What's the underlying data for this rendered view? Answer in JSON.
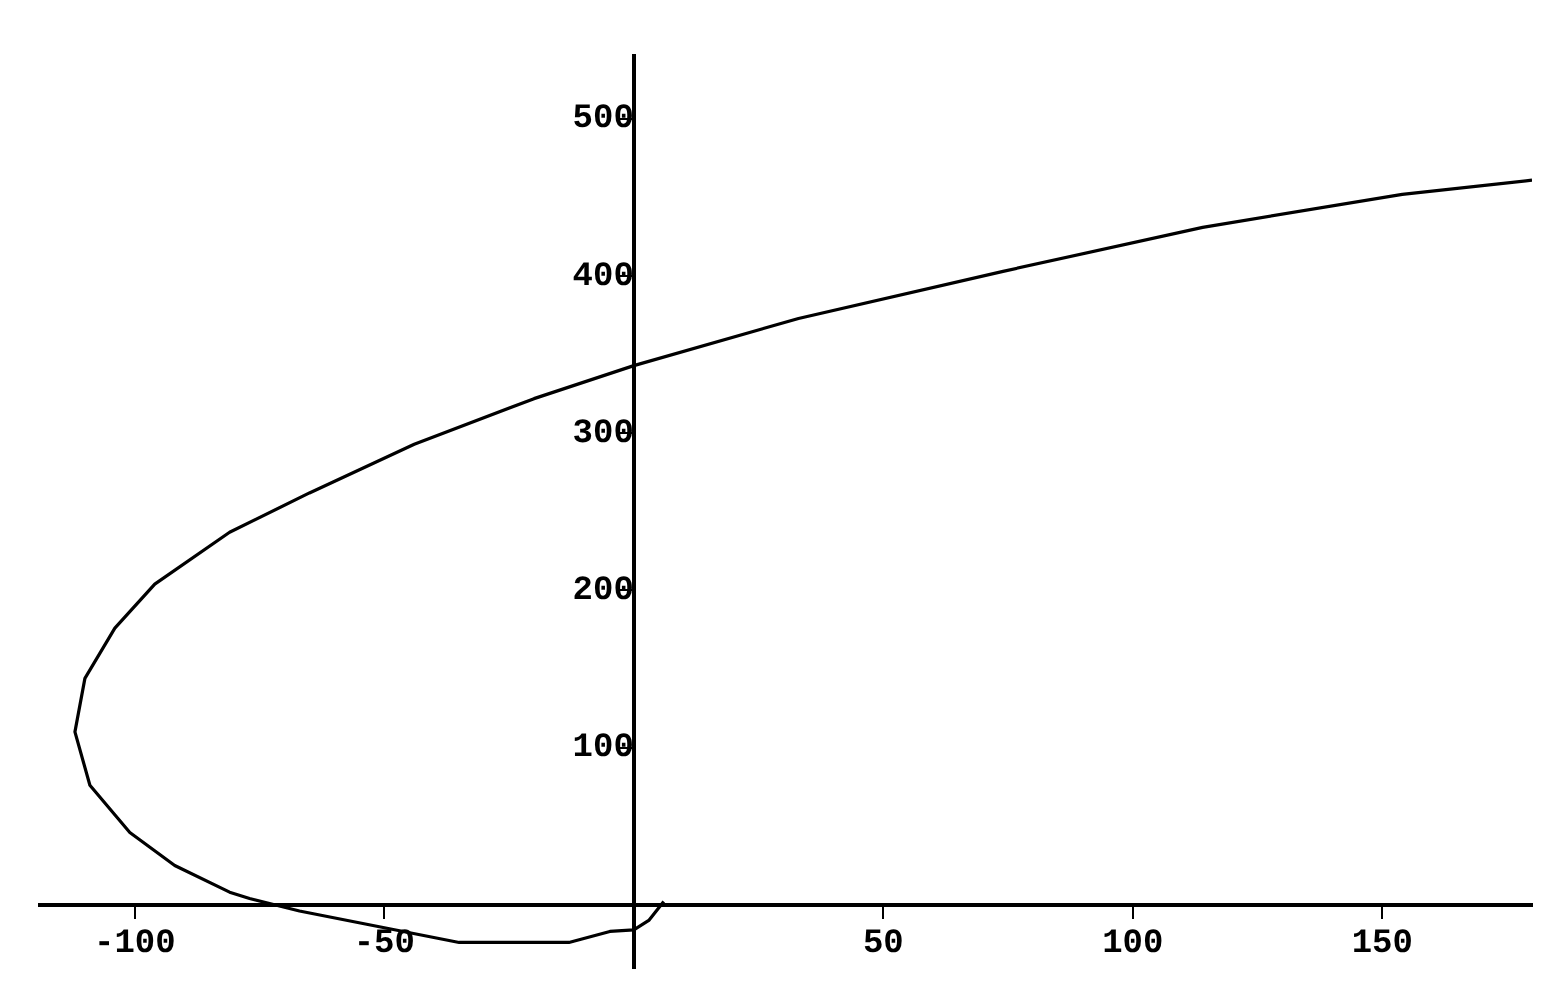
{
  "chart_data": {
    "type": "line",
    "x": [
      6,
      3,
      0,
      -4.8,
      -13,
      -35,
      -51,
      -67,
      -77,
      -81,
      -92,
      -101,
      -109,
      -112,
      -110,
      -104,
      -96,
      -81,
      -65,
      -44,
      -20,
      0,
      33,
      74,
      114,
      154,
      180
    ],
    "series": [
      {
        "color": "#000000",
        "values": [
          2,
          -10,
          -16,
          -17,
          -24,
          -24,
          -14,
          -4,
          4,
          8,
          25,
          46,
          76,
          110,
          144,
          176,
          204,
          237,
          262,
          293,
          322,
          343,
          373,
          403,
          431,
          452,
          461
        ]
      }
    ],
    "xlim": [
      -119,
      180
    ],
    "ylim": [
      -40,
      540
    ],
    "xticks": [
      -100,
      -50,
      50,
      100,
      150
    ],
    "yticks": [
      100,
      200,
      300,
      400,
      500
    ],
    "grid": false,
    "legend": false,
    "marker": "none",
    "line_style": "solid"
  }
}
